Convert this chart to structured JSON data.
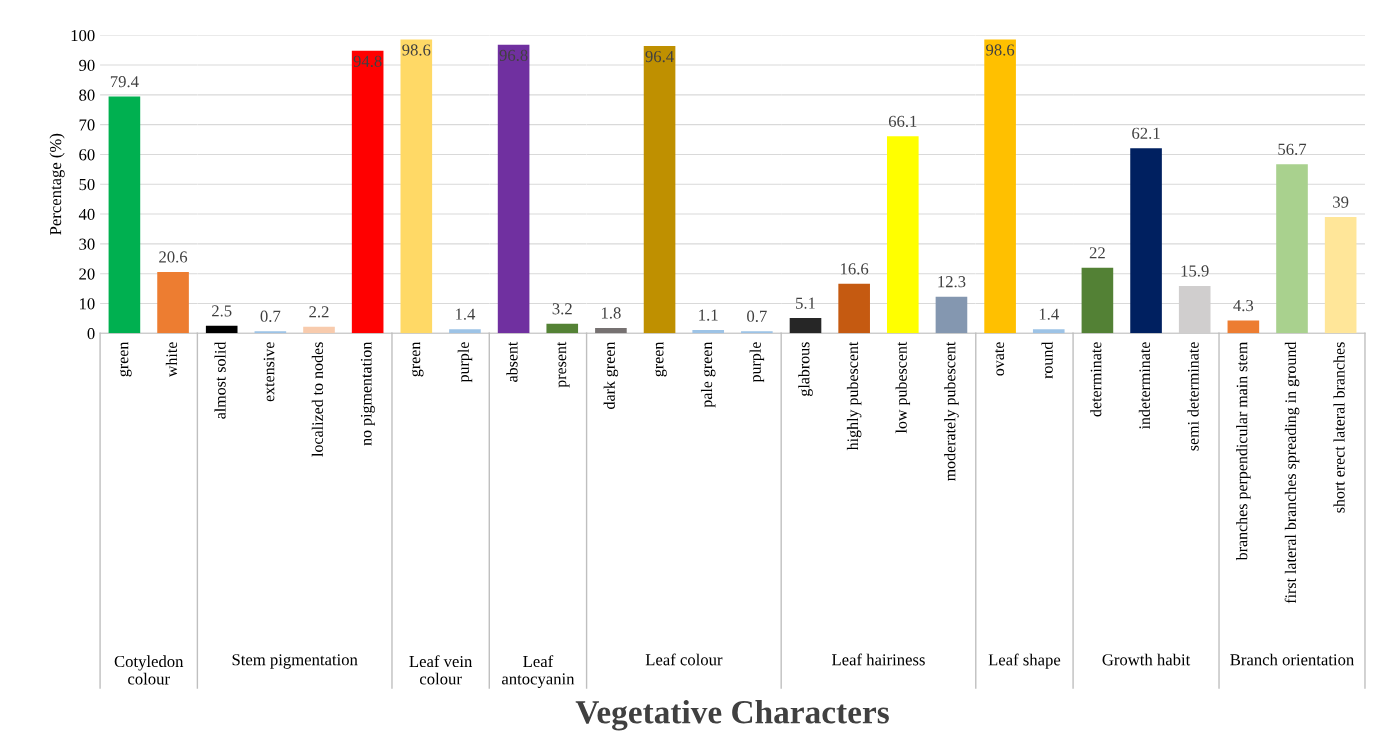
{
  "chart_data": [
    {
      "type": "bar",
      "xlabel": "Cotyledon colour",
      "ylabel": "Percentage (%)",
      "categories": [
        "green",
        "white"
      ],
      "values": [
        79.4,
        20.6
      ],
      "colors": [
        "#00b050",
        "#ed7d31"
      ],
      "ylim": [
        0,
        100
      ],
      "yticks": [
        0,
        10,
        20,
        30,
        40,
        50,
        60,
        70,
        80,
        90,
        100
      ],
      "grid": "y",
      "data_labels": true
    },
    {
      "type": "bar",
      "xlabel": "Stem pigmentation",
      "categories": [
        "almost solid",
        "extensive",
        "localized to nodes",
        "no pigmentation"
      ],
      "values": [
        2.5,
        0.7,
        2.2,
        94.8
      ],
      "colors": [
        "#000000",
        "#9dc3e6",
        "#f8cbad",
        "#ff0000"
      ],
      "ylim": [
        0,
        100
      ],
      "yticks": [
        0,
        10,
        20,
        30,
        40,
        50,
        60,
        70,
        80,
        90,
        100
      ],
      "grid": "y",
      "data_labels": true,
      "tick_labels": "x"
    },
    {
      "type": "bar",
      "xlabel": "Leaf vein colour",
      "categories": [
        "green",
        "purple"
      ],
      "values": [
        98.6,
        1.4
      ],
      "colors": [
        "#ffd966",
        "#9dc3e6"
      ],
      "ylim": [
        0,
        100
      ],
      "yticks": [
        0,
        10,
        20,
        30,
        40,
        50,
        60,
        70,
        80,
        90,
        100
      ],
      "grid": "y",
      "data_labels": true,
      "tick_labels": "x"
    },
    {
      "type": "bar",
      "xlabel": "Leaf antocyanin",
      "categories": [
        "absent",
        "present"
      ],
      "values": [
        96.8,
        3.2
      ],
      "colors": [
        "#7030a0",
        "#548235"
      ],
      "ylim": [
        0,
        100
      ],
      "yticks": [
        0,
        10,
        20,
        30,
        40,
        50,
        60,
        70,
        80,
        90,
        100
      ],
      "grid": "y",
      "data_labels": true,
      "tick_labels": "x"
    },
    {
      "type": "bar",
      "xlabel": "Leaf colour",
      "categories": [
        "dark green",
        "green",
        "pale green",
        "purple"
      ],
      "values": [
        1.8,
        96.4,
        1.1,
        0.7
      ],
      "colors": [
        "#767171",
        "#bf9000",
        "#9dc3e6",
        "#9dc3e6"
      ],
      "ylim": [
        0,
        100
      ],
      "yticks": [
        0,
        10,
        20,
        30,
        40,
        50,
        60,
        70,
        80,
        90,
        100
      ],
      "grid": "y",
      "data_labels": true,
      "tick_labels": "x"
    },
    {
      "type": "bar",
      "xlabel": "Leaf hairiness",
      "categories": [
        "glabrous",
        "highly pubescent",
        "low pubescent",
        "moderately pubescent"
      ],
      "values": [
        5.1,
        16.6,
        66.1,
        12.3
      ],
      "colors": [
        "#262626",
        "#c55a11",
        "#ffff00",
        "#8497b0"
      ],
      "ylim": [
        0,
        100
      ],
      "yticks": [
        0,
        10,
        20,
        30,
        40,
        50,
        60,
        70,
        80,
        90,
        100
      ],
      "grid": "y",
      "data_labels": true,
      "tick_labels": "x"
    },
    {
      "type": "bar",
      "xlabel": "Leaf shape",
      "categories": [
        "ovate",
        "round"
      ],
      "values": [
        98.6,
        1.4
      ],
      "colors": [
        "#ffc000",
        "#9dc3e6"
      ],
      "ylim": [
        0,
        100
      ],
      "yticks": [
        0,
        10,
        20,
        30,
        40,
        50,
        60,
        70,
        80,
        90,
        100
      ],
      "grid": "y",
      "data_labels": true,
      "tick_labels": "x"
    },
    {
      "type": "bar",
      "xlabel": "Growth habit",
      "categories": [
        "determinate",
        "indeterminate",
        "semi determinate"
      ],
      "values": [
        22,
        62.1,
        15.9
      ],
      "colors": [
        "#538135",
        "#002060",
        "#d0cece"
      ],
      "ylim": [
        0,
        100
      ],
      "yticks": [
        0,
        10,
        20,
        30,
        40,
        50,
        60,
        70,
        80,
        90,
        100
      ],
      "grid": "y",
      "data_labels": true,
      "tick_labels": "x"
    },
    {
      "type": "bar",
      "xlabel": "Branch orientation",
      "categories": [
        "branches perpendicular main stem",
        "first lateral branches spreading in ground",
        "short erect lateral branches"
      ],
      "values": [
        4.3,
        56.7,
        39
      ],
      "colors": [
        "#ed7d31",
        "#a9d18e",
        "#ffe699"
      ],
      "ylim": [
        0,
        100
      ],
      "yticks": [
        0,
        10,
        20,
        30,
        40,
        50,
        60,
        70,
        80,
        90,
        100
      ],
      "grid": "y",
      "data_labels": true,
      "tick_labels": "x",
      "annotations": [
        "Vegetative Characters"
      ]
    }
  ]
}
